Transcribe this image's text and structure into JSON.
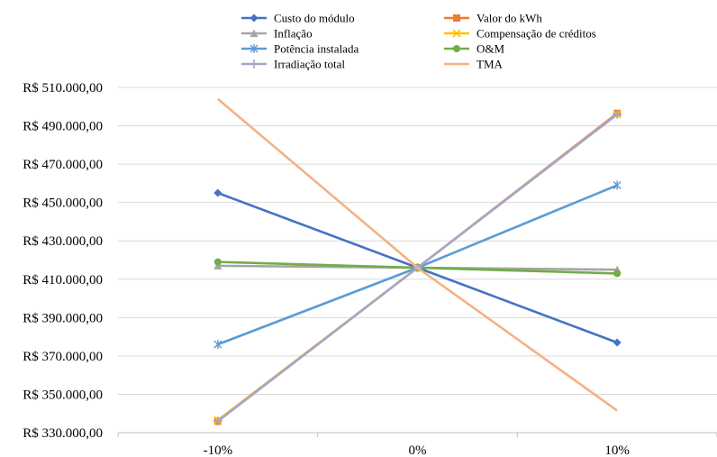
{
  "chart_data": {
    "type": "line",
    "title": "",
    "xlabel": "",
    "ylabel": "",
    "categories": [
      "-10%",
      "0%",
      "10%"
    ],
    "ylim": [
      330000,
      510000
    ],
    "y_ticks": [
      330000,
      350000,
      370000,
      390000,
      410000,
      430000,
      450000,
      470000,
      490000,
      510000
    ],
    "y_tick_labels": [
      "R$ 330.000,00",
      "R$ 350.000,00",
      "R$ 370.000,00",
      "R$ 390.000,00",
      "R$ 410.000,00",
      "R$ 430.000,00",
      "R$ 450.000,00",
      "R$ 470.000,00",
      "R$ 490.000,00",
      "R$ 510.000,00"
    ],
    "grid": "horizontal",
    "legend_position": "top",
    "series": [
      {
        "name": "Custo do módulo",
        "values": [
          455000,
          416000,
          377000
        ],
        "color": "#4472C4",
        "marker": "diamond"
      },
      {
        "name": "Valor do kWh",
        "values": [
          336000,
          416000,
          496500
        ],
        "color": "#ED7D31",
        "marker": "square"
      },
      {
        "name": "Inflação",
        "values": [
          417000,
          416000,
          415000
        ],
        "color": "#A5A5A5",
        "marker": "triangle"
      },
      {
        "name": "Compensação de créditos",
        "values": [
          336500,
          416000,
          496000
        ],
        "color": "#FFC000",
        "marker": "x"
      },
      {
        "name": "Potência instalada",
        "values": [
          376000,
          416000,
          459000
        ],
        "color": "#5B9BD5",
        "marker": "asterisk"
      },
      {
        "name": "O&M",
        "values": [
          419000,
          416000,
          413000
        ],
        "color": "#70AD47",
        "marker": "circle"
      },
      {
        "name": "Irradiação total",
        "values": [
          336000,
          416000,
          496000
        ],
        "color": "#A5A5CF",
        "marker": "plus"
      },
      {
        "name": "TMA",
        "values": [
          504000,
          416000,
          341500
        ],
        "color": "#F4B183",
        "marker": "none"
      }
    ]
  }
}
